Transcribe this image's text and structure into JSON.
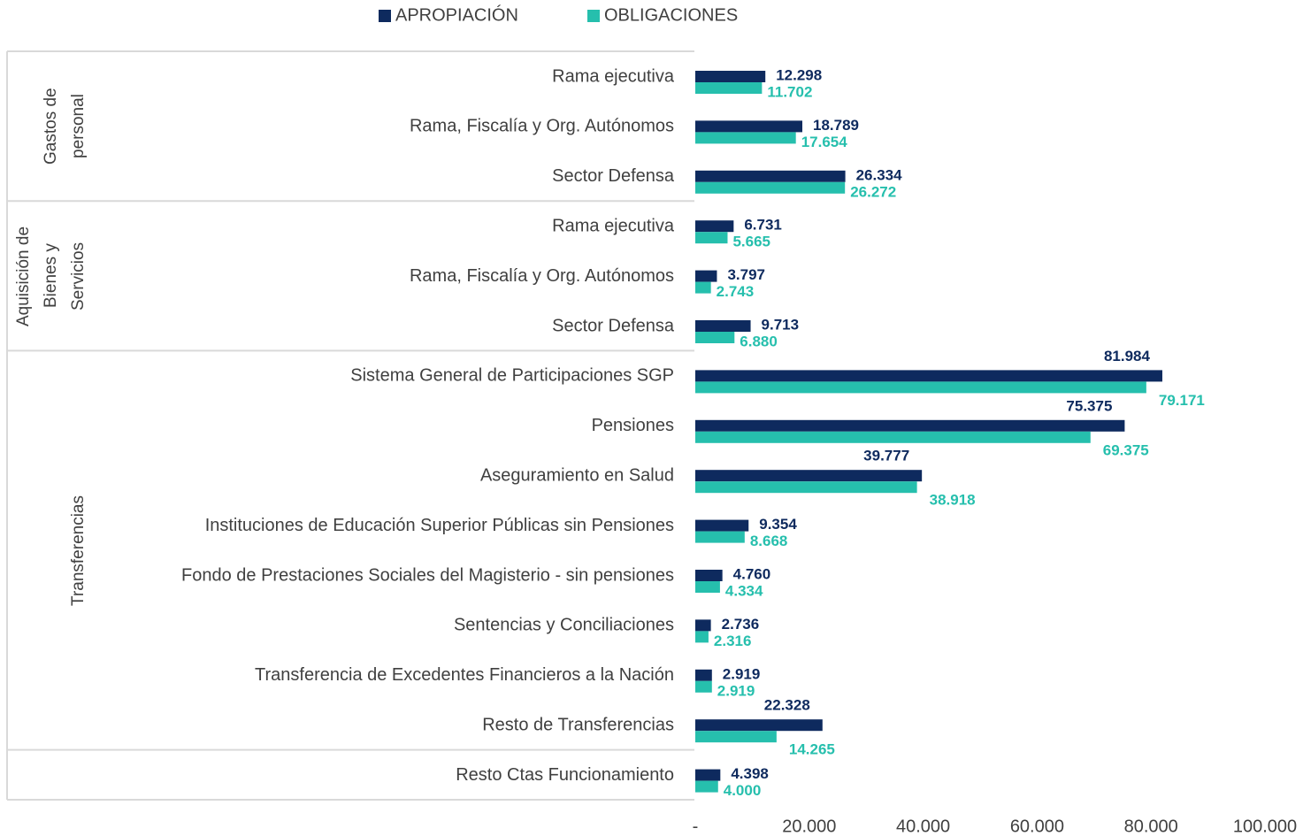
{
  "chart_data": {
    "type": "bar",
    "orientation": "horizontal",
    "categories": [
      "Rama ejecutiva",
      "Rama, Fiscalía y Org. Autónomos",
      "Sector Defensa",
      "Rama ejecutiva",
      "Rama, Fiscalía y Org. Autónomos",
      "Sector Defensa",
      "Sistema General de Participaciones SGP",
      "Pensiones",
      "Aseguramiento en Salud",
      "Instituciones de Educación Superior Públicas sin Pensiones",
      "Fondo de Prestaciones Sociales del Magisterio - sin pensiones",
      "Sentencias y Conciliaciones",
      "Transferencia de Excedentes Financieros a la Nación",
      "Resto de Transferencias",
      "Resto Ctas Funcionamiento"
    ],
    "category_groups": [
      "Gastos de personal",
      "Gastos de personal",
      "Gastos de personal",
      "Aquisición de Bienes y Servicios",
      "Aquisición de Bienes y Servicios",
      "Aquisición de Bienes y Servicios",
      "Transferencias",
      "Transferencias",
      "Transferencias",
      "Transferencias",
      "Transferencias",
      "Transferencias",
      "Transferencias",
      "Transferencias",
      null
    ],
    "series": [
      {
        "name": "APROPIACIÓN",
        "color": "#0e2a5e",
        "values": [
          12298,
          18789,
          26334,
          6731,
          3797,
          9713,
          81984,
          75375,
          39777,
          9354,
          4760,
          2736,
          2919,
          22328,
          4398
        ],
        "value_labels": [
          "12.298",
          "18.789",
          "26.334",
          "6.731",
          "3.797",
          "9.713",
          "81.984",
          "75.375",
          "39.777",
          "9.354",
          "4.760",
          "2.736",
          "2.919",
          "22.328",
          "4.398"
        ]
      },
      {
        "name": "OBLIGACIONES",
        "color": "#26bfad",
        "values": [
          11702,
          17654,
          26272,
          5665,
          2743,
          6880,
          79171,
          69375,
          38918,
          8668,
          4334,
          2316,
          2919,
          14265,
          4000
        ],
        "value_labels": [
          "11.702",
          "17.654",
          "26.272",
          "5.665",
          "2.743",
          "6.880",
          "79.171",
          "69.375",
          "38.918",
          "8.668",
          "4.334",
          "2.316",
          "2.919",
          "14.265",
          "4.000"
        ]
      }
    ],
    "xlim": [
      0,
      100000
    ],
    "xticks": [
      {
        "value": 0,
        "label": "-"
      },
      {
        "value": 20000,
        "label": "20.000"
      },
      {
        "value": 40000,
        "label": "40.000"
      },
      {
        "value": 60000,
        "label": "60.000"
      },
      {
        "value": 80000,
        "label": "80.000"
      },
      {
        "value": 100000,
        "label": "100.000"
      }
    ],
    "legend": "top"
  }
}
